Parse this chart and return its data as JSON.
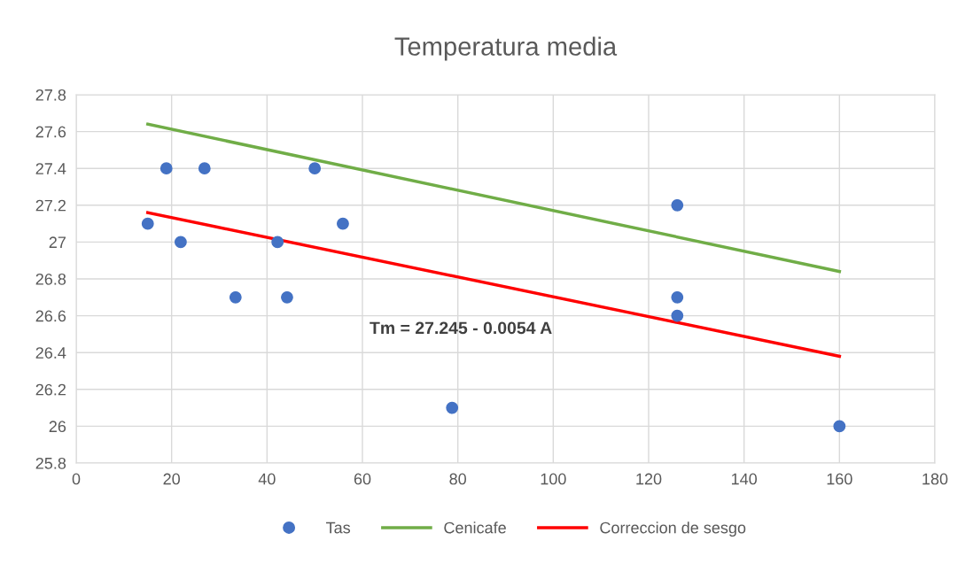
{
  "chart_data": {
    "type": "scatter",
    "title": "Temperatura media",
    "xlim": [
      0,
      180
    ],
    "xticks": [
      0,
      20,
      40,
      60,
      80,
      100,
      120,
      140,
      160,
      180
    ],
    "ylim": [
      25.8,
      27.8
    ],
    "yticks": [
      25.8,
      26,
      26.2,
      26.4,
      26.6,
      26.8,
      27,
      27.2,
      27.4,
      27.6,
      27.8
    ],
    "grid": true,
    "legend": "bottom",
    "series": [
      {
        "name": "Tas",
        "marker": "circle",
        "color": "#4472c4",
        "x": [
          15,
          18.9,
          26.9,
          21.9,
          33.4,
          42.2,
          44.2,
          50,
          55.9,
          78.8,
          126,
          126,
          126,
          160
        ],
        "values": [
          27.1,
          27.4,
          27.4,
          27.0,
          26.7,
          27.0,
          26.7,
          27.4,
          27.1,
          26.1,
          27.2,
          26.7,
          26.6,
          26.0
        ]
      },
      {
        "name": "Cenicafe",
        "type": "line",
        "marker": "none",
        "color": "#70ad47",
        "x": [
          15,
          160
        ],
        "values": [
          27.64,
          26.84
        ]
      },
      {
        "name": "Correccion de sesgo",
        "type": "line",
        "marker": "none",
        "color": "#ff0000",
        "x": [
          15,
          160
        ],
        "values": [
          27.16,
          26.38
        ]
      }
    ],
    "annotations": [
      "Tm = 27.245 - 0.0054 A"
    ]
  }
}
